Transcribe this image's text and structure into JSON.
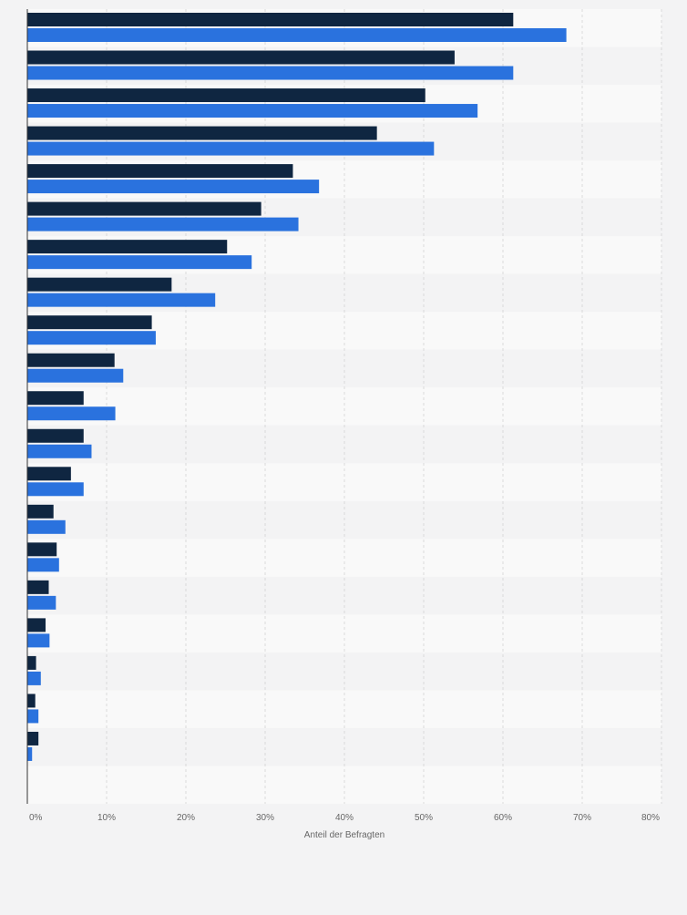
{
  "chart_data": {
    "type": "bar",
    "orientation": "horizontal",
    "xlabel": "Anteil der Befragten",
    "xlim": [
      0,
      80
    ],
    "xticks": [
      0,
      10,
      20,
      30,
      40,
      50,
      60,
      70,
      80
    ],
    "tick_suffix": "%",
    "grid": true,
    "legend": "none",
    "series": [
      {
        "color": "#0f2641",
        "values": [
          61.3,
          53.9,
          50.2,
          44.1,
          33.5,
          29.5,
          25.2,
          18.2,
          15.7,
          11.0,
          7.1,
          7.1,
          5.5,
          3.3,
          3.7,
          2.7,
          2.3,
          1.1,
          1.0,
          1.4
        ]
      },
      {
        "color": "#2a72de",
        "values": [
          68.0,
          61.3,
          56.8,
          51.3,
          36.8,
          34.2,
          28.3,
          23.7,
          16.2,
          12.1,
          11.1,
          8.1,
          7.1,
          4.8,
          4.0,
          3.6,
          2.8,
          1.7,
          1.4,
          0.6
        ]
      }
    ]
  }
}
